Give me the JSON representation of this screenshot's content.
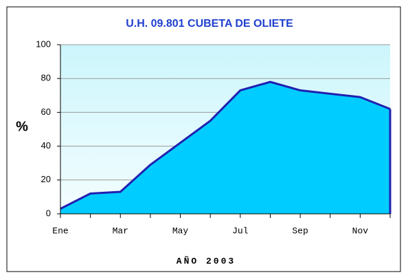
{
  "chart_data": {
    "type": "area",
    "title": "U.H. 09.801 CUBETA DE OLIETE",
    "ylabel": "%",
    "xlabel": "AÑO 2003",
    "categories": [
      "Ene",
      null,
      "Mar",
      null,
      "May",
      null,
      "Jul",
      null,
      "Sep",
      null,
      "Nov",
      null
    ],
    "values": [
      3,
      12,
      13,
      29,
      42,
      55,
      73,
      78,
      73,
      71,
      69,
      62
    ],
    "color": "#00ccff",
    "line_color": "#2020b0",
    "ylim": [
      0,
      100
    ],
    "yticks": [
      0,
      20,
      40,
      60,
      80,
      100
    ],
    "grid": true
  }
}
